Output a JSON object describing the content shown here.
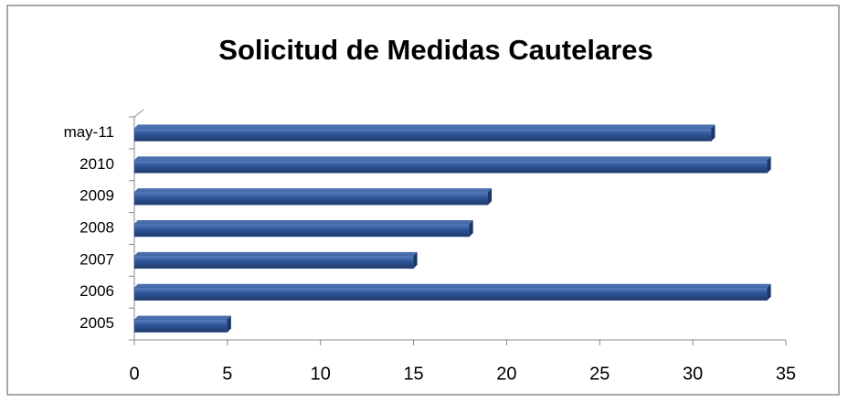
{
  "chart_data": {
    "type": "bar",
    "orientation": "horizontal",
    "title": "Solicitud de Medidas Cautelares",
    "categories": [
      "2005",
      "2006",
      "2007",
      "2008",
      "2009",
      "2010",
      "may-11"
    ],
    "values": [
      5,
      34,
      15,
      18,
      19,
      34,
      31
    ],
    "color": "#2f5496",
    "xlim": [
      0,
      35
    ],
    "xticks": [
      0,
      5,
      10,
      15,
      20,
      25,
      30,
      35
    ],
    "grid": false
  }
}
